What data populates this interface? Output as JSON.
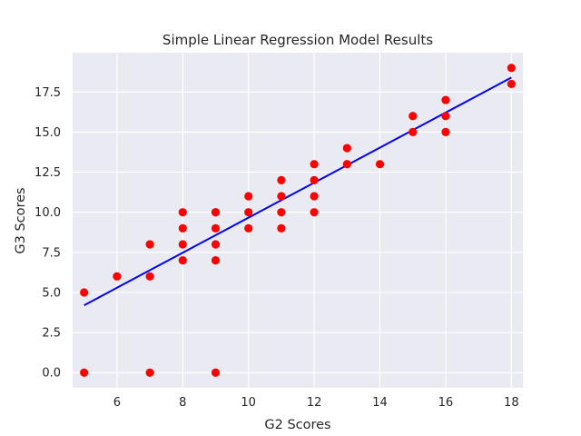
{
  "chart_data": {
    "type": "scatter",
    "title": "Simple Linear Regression Model Results",
    "xlabel": "G2 Scores",
    "ylabel": "G3 Scores",
    "xlim": [
      4.65,
      18.35
    ],
    "ylim": [
      -0.95,
      19.95
    ],
    "xticks": [
      6,
      8,
      10,
      12,
      14,
      16,
      18
    ],
    "xtick_labels": [
      "6",
      "8",
      "10",
      "12",
      "14",
      "16",
      "18"
    ],
    "yticks": [
      0,
      2.5,
      5,
      7.5,
      10,
      12.5,
      15,
      17.5
    ],
    "ytick_labels": [
      "0.0",
      "2.5",
      "5.0",
      "7.5",
      "10.0",
      "12.5",
      "15.0",
      "17.5"
    ],
    "grid": true,
    "legend": "none",
    "colors": {
      "background": "#eaeaf2",
      "grid": "#ffffff",
      "points": "#ff0000",
      "line": "#0000ff",
      "text": "#262626"
    },
    "series": [
      {
        "kind": "scatter",
        "x": [
          5,
          5,
          6,
          7,
          7,
          7,
          8,
          8,
          8,
          8,
          9,
          9,
          9,
          9,
          9,
          10,
          10,
          10,
          11,
          11,
          11,
          11,
          12,
          12,
          12,
          12,
          13,
          13,
          14,
          15,
          15,
          16,
          16,
          16,
          18,
          18,
          9
        ],
        "y": [
          5,
          0,
          6,
          8,
          6,
          0,
          10,
          9,
          8,
          7,
          10,
          9,
          8,
          7,
          0,
          11,
          10,
          9,
          12,
          11,
          10,
          9,
          13,
          12,
          11,
          10,
          14,
          13,
          13,
          16,
          15,
          17,
          16,
          15,
          19,
          18,
          10
        ]
      },
      {
        "kind": "line",
        "x": [
          5,
          18
        ],
        "y": [
          4.2,
          18.4
        ]
      }
    ]
  }
}
